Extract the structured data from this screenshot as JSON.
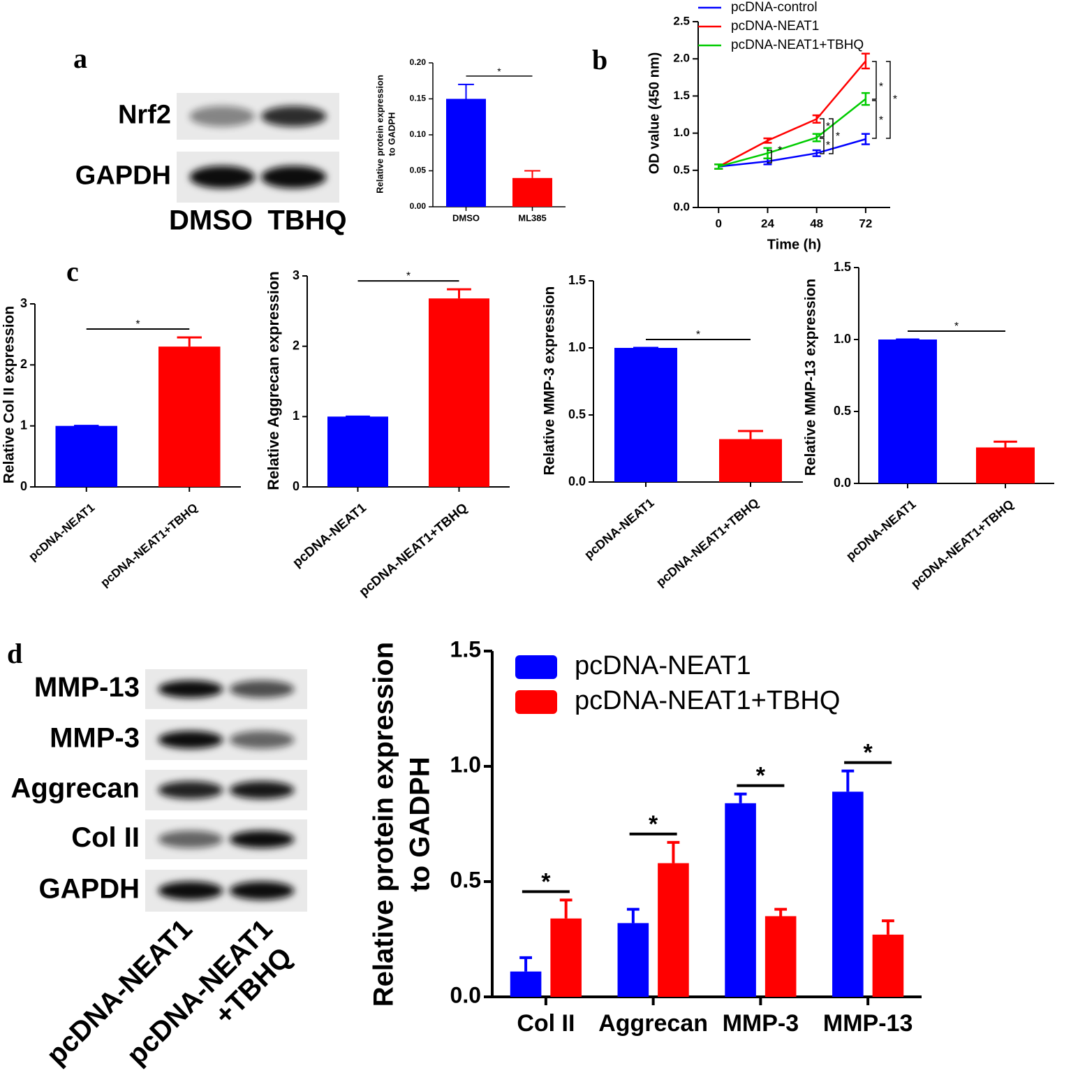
{
  "panel_labels": [
    "a",
    "b",
    "c",
    "d"
  ],
  "blots": [
    {
      "rows": [
        "Nrf2",
        "GAPDH"
      ],
      "lanes": [
        [
          "DMSO"
        ],
        [
          "TBHQ"
        ]
      ]
    },
    {
      "rows": [
        "MMP-13",
        "MMP-3",
        "Aggrecan",
        "Col II",
        "GAPDH"
      ],
      "lanes": [
        [
          "pcDNA-NEAT1"
        ],
        [
          "pcDNA-NEAT1",
          "+TBHQ"
        ]
      ]
    }
  ],
  "chart_data": [
    {
      "type": "bar",
      "ylabel": [
        "Relative protein expression",
        "to GADPH"
      ],
      "categories": [
        "DMSO",
        "ML385"
      ],
      "values": [
        0.15,
        0.04
      ],
      "errors": [
        0.02,
        0.01
      ],
      "colors": [
        "#0000ff",
        "#ff0000"
      ],
      "ylim": [
        0,
        0.2
      ],
      "yticks": [
        {
          "value": 0,
          "label": "0.00"
        },
        0.05,
        {
          "value": 0.1,
          "label": "0.10"
        },
        0.15,
        {
          "value": 0.2,
          "label": "0.20"
        }
      ],
      "annotations": [
        "*"
      ]
    },
    {
      "type": "line",
      "xlabel": "Time (h)",
      "ylabel": "OD value (450 nm)",
      "x": [
        0,
        24,
        48,
        72
      ],
      "series": [
        {
          "name": "pcDNA-control",
          "color": "#0000ff",
          "values": [
            0.55,
            0.62,
            0.73,
            0.92
          ],
          "errors": [
            0.03,
            0.04,
            0.04,
            0.07
          ]
        },
        {
          "name": "pcDNA-NEAT1",
          "color": "#ff0000",
          "values": [
            0.55,
            0.9,
            1.19,
            1.97
          ],
          "errors": [
            0.03,
            0.03,
            0.05,
            0.1
          ]
        },
        {
          "name": "pcDNA-NEAT1+TBHQ",
          "color": "#00cc00",
          "values": [
            0.55,
            0.73,
            0.94,
            1.46
          ],
          "errors": [
            0.03,
            0.07,
            0.05,
            0.08
          ]
        }
      ],
      "xlim": [
        -10,
        84
      ],
      "xticks": [
        0,
        24,
        48,
        72
      ],
      "ylim": [
        0,
        2.5
      ],
      "yticks": [
        {
          "value": 0,
          "label": "0.0"
        },
        0.5,
        {
          "value": 1,
          "label": "1.0"
        },
        1.5,
        {
          "value": 2,
          "label": "2.0"
        },
        2.5
      ],
      "annotations": [
        "*",
        "*",
        "*",
        "*",
        "*",
        "*",
        "*"
      ]
    },
    {
      "type": "bar",
      "ylabel": "Relative Col II expression",
      "categories": [
        "pcDNA-NEAT1",
        "pcDNA-NEAT1+TBHQ"
      ],
      "values": [
        1.0,
        2.3
      ],
      "errors": [
        0,
        0.15
      ],
      "colors": [
        "#0000ff",
        "#ff0000"
      ],
      "ylim": [
        0,
        3
      ],
      "yticks": [
        0,
        1,
        2,
        3
      ],
      "annotations": [
        "*"
      ]
    },
    {
      "type": "bar",
      "ylabel": "Relative Aggrecan expression",
      "categories": [
        "pcDNA-NEAT1",
        "pcDNA-NEAT1+TBHQ"
      ],
      "values": [
        1.0,
        2.68
      ],
      "errors": [
        0,
        0.13
      ],
      "colors": [
        "#0000ff",
        "#ff0000"
      ],
      "ylim": [
        0,
        3
      ],
      "yticks": [
        0,
        1,
        2,
        3
      ],
      "annotations": [
        "*"
      ]
    },
    {
      "type": "bar",
      "ylabel": "Relative MMP-3 expression",
      "categories": [
        "pcDNA-NEAT1",
        "pcDNA-NEAT1+TBHQ"
      ],
      "values": [
        1.0,
        0.32
      ],
      "errors": [
        0,
        0.06
      ],
      "colors": [
        "#0000ff",
        "#ff0000"
      ],
      "ylim": [
        0,
        1.5
      ],
      "yticks": [
        {
          "value": 0,
          "label": "0.0"
        },
        0.5,
        {
          "value": 1,
          "label": "1.0"
        },
        1.5
      ],
      "annotations": [
        "*"
      ]
    },
    {
      "type": "bar",
      "ylabel": "Relative MMP-13 expression",
      "categories": [
        "pcDNA-NEAT1",
        "pcDNA-NEAT1+TBHQ"
      ],
      "values": [
        1.0,
        0.25
      ],
      "errors": [
        0,
        0.04
      ],
      "colors": [
        "#0000ff",
        "#ff0000"
      ],
      "ylim": [
        0,
        1.5
      ],
      "yticks": [
        {
          "value": 0,
          "label": "0.0"
        },
        0.5,
        {
          "value": 1,
          "label": "1.0"
        },
        1.5
      ],
      "annotations": [
        "*"
      ]
    },
    {
      "type": "bar",
      "ylabel": [
        "Relative protein expression",
        "to GADPH"
      ],
      "categories": [
        "Col II",
        "Aggrecan",
        "MMP-3",
        "MMP-13"
      ],
      "series": [
        {
          "name": "pcDNA-NEAT1",
          "color": "#0000ff",
          "values": [
            0.11,
            0.32,
            0.84,
            0.89
          ],
          "errors": [
            0.06,
            0.06,
            0.04,
            0.09
          ]
        },
        {
          "name": "pcDNA-NEAT1+TBHQ",
          "color": "#ff0000",
          "values": [
            0.34,
            0.58,
            0.35,
            0.27
          ],
          "errors": [
            0.08,
            0.09,
            0.03,
            0.06
          ]
        }
      ],
      "ylim": [
        0,
        1.5
      ],
      "yticks": [
        {
          "value": 0,
          "label": "0.0"
        },
        0.5,
        {
          "value": 1,
          "label": "1.0"
        },
        1.5
      ],
      "annotations": [
        "*",
        "*",
        "*",
        "*"
      ],
      "legend": "top-left"
    }
  ]
}
